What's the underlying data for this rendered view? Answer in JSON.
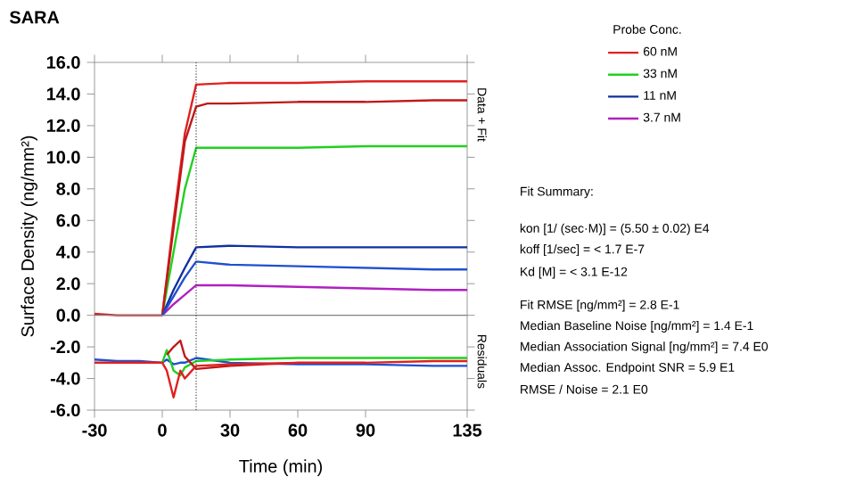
{
  "chart_data": {
    "type": "line",
    "title": "SARA",
    "xlabel": "Time (min)",
    "ylabel": "Surface Density (ng/mm²)",
    "legend_title": "Probe Conc.",
    "xlim": [
      -30,
      135
    ],
    "xticks": [
      -30,
      0,
      30,
      60,
      90,
      135
    ],
    "ylim": [
      -6,
      16
    ],
    "yticks": [
      {
        "value": -6,
        "label": "-6.0"
      },
      {
        "value": -4,
        "label": "-4.0"
      },
      {
        "value": -2,
        "label": "-2.0"
      },
      {
        "value": 0,
        "label": "0.0"
      },
      {
        "value": 2,
        "label": "2.0"
      },
      {
        "value": 4,
        "label": "4.0"
      },
      {
        "value": 6,
        "label": "6.0"
      },
      {
        "value": 8,
        "label": "8.0"
      },
      {
        "value": 10,
        "label": "10.0"
      },
      {
        "value": 12,
        "label": "12.0"
      },
      {
        "value": 14,
        "label": "14.0"
      },
      {
        "value": 16,
        "label": "16.0"
      }
    ],
    "legend": "right",
    "grid": false,
    "marker": "none",
    "line_style": "solid",
    "ref_lines": [
      {
        "axis": "y",
        "value": 0,
        "color": "#808080",
        "line_style": "solid"
      },
      {
        "axis": "x",
        "value": 15,
        "color": "#404040",
        "line_style": "dotted"
      }
    ],
    "series": [
      {
        "name": "60 nM",
        "color": "#e02020",
        "x": [
          -30,
          -20,
          -10,
          0,
          5,
          10,
          15,
          30,
          60,
          90,
          120,
          135
        ],
        "values": [
          0.1,
          0,
          0,
          0,
          6,
          11.5,
          14.6,
          14.7,
          14.7,
          14.8,
          14.8,
          14.8
        ]
      },
      {
        "name": "33 nM",
        "color": "#20d020",
        "x": [
          0,
          5,
          10,
          15,
          30,
          60,
          90,
          120,
          135
        ],
        "values": [
          0,
          4,
          8,
          10.6,
          10.6,
          10.6,
          10.7,
          10.7,
          10.7
        ]
      },
      {
        "name": "11 nM",
        "color": "#1030a0",
        "x": [
          0,
          5,
          10,
          15,
          30,
          60,
          90,
          120,
          135
        ],
        "values": [
          0,
          1.6,
          3,
          4.3,
          4.4,
          4.3,
          4.3,
          4.3,
          4.3
        ]
      },
      {
        "name": "3.7 nM",
        "color": "#b020c0",
        "x": [
          0,
          5,
          10,
          15,
          30,
          60,
          90,
          120,
          135
        ],
        "values": [
          0,
          0.7,
          1.3,
          1.9,
          1.9,
          1.8,
          1.7,
          1.6,
          1.6
        ]
      },
      {
        "color": "#c01818",
        "x": [
          0,
          5,
          10,
          15,
          20,
          30,
          60,
          90,
          120,
          135
        ],
        "values": [
          0,
          5.5,
          11,
          13.2,
          13.4,
          13.4,
          13.5,
          13.5,
          13.6,
          13.6
        ]
      },
      {
        "color": "#2050d0",
        "x": [
          0,
          5,
          10,
          15,
          30,
          60,
          90,
          120,
          135
        ],
        "values": [
          0,
          1.2,
          2.4,
          3.4,
          3.2,
          3.1,
          3.0,
          2.9,
          2.9
        ]
      },
      {
        "color": "#2050d0",
        "x": [
          -30,
          -20,
          -10,
          0,
          2,
          5,
          8,
          10,
          15,
          30,
          60,
          90,
          120,
          135
        ],
        "values": [
          -2.8,
          -2.9,
          -2.9,
          -3,
          -2.8,
          -3.1,
          -3.0,
          -3.0,
          -2.7,
          -3.0,
          -3.1,
          -3.1,
          -3.2,
          -3.2
        ]
      },
      {
        "color": "#20d020",
        "x": [
          0,
          2,
          5,
          8,
          10,
          15,
          30,
          60,
          90,
          120,
          135
        ],
        "values": [
          -3,
          -2.2,
          -3.5,
          -3.8,
          -3.3,
          -2.9,
          -2.8,
          -2.7,
          -2.7,
          -2.7,
          -2.7
        ]
      },
      {
        "color": "#c01818",
        "x": [
          2,
          5,
          8,
          10,
          15,
          30,
          60
        ],
        "values": [
          -2.5,
          -2.0,
          -1.6,
          -2.6,
          -3.4,
          -3.2,
          -3.0
        ]
      },
      {
        "color": "#e02020",
        "x": [
          -30,
          -20,
          -10,
          0,
          2,
          5,
          8,
          10,
          15,
          30,
          60,
          90,
          120,
          135
        ],
        "values": [
          -3,
          -3,
          -3,
          -3,
          -3.5,
          -5.2,
          -3.5,
          -4.0,
          -3.2,
          -3.1,
          -3.0,
          -3.0,
          -2.9,
          -2.9
        ]
      }
    ],
    "annotations": [
      "Data + Fit",
      "Residuals",
      "Fit Summary:",
      "kon  [1/ (sec·M)]  =   (5.50 ± 0.02) E4",
      "koff  [1/sec]  =   < 1.7 E-7",
      "Kd  [M]  =   < 3.1 E-12",
      "Fit RMSE [ng/mm²]  =   2.8 E-1",
      "Median Baseline Noise [ng/mm²]  =   1.4 E-1",
      "Median Association Signal [ng/mm²]  =   7.4 E0",
      "Median Assoc. Endpoint SNR  =   5.9 E1",
      "RMSE / Noise  =   2.1 E0"
    ]
  }
}
